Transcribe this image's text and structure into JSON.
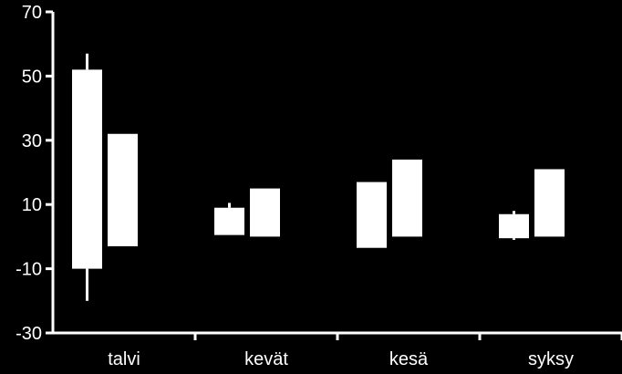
{
  "chart_data": {
    "type": "box",
    "title": "",
    "xlabel": "",
    "ylabel": "",
    "ylim": [
      -30,
      70
    ],
    "yticks": [
      -30,
      -10,
      10,
      30,
      50,
      70
    ],
    "ytick_labels": [
      "-30",
      "-10",
      "10",
      "30",
      "50",
      "70"
    ],
    "grid": false,
    "categories": [
      "talvi",
      "kevät",
      "kesä",
      "syksy"
    ],
    "series": [
      {
        "boxes": [
          {
            "low": -10,
            "high": 52,
            "whisker_low": -20,
            "whisker_high": 57
          },
          {
            "low": 0.5,
            "high": 9,
            "whisker_low": 0.5,
            "whisker_high": 10.5
          },
          {
            "low": -3.5,
            "high": 17,
            "whisker_low": -3.5,
            "whisker_high": 17
          },
          {
            "low": -0.5,
            "high": 7,
            "whisker_low": -1,
            "whisker_high": 8
          }
        ]
      },
      {
        "boxes": [
          {
            "low": -3,
            "high": 32,
            "whisker_low": -3,
            "whisker_high": 32
          },
          {
            "low": 0,
            "high": 15,
            "whisker_low": 0,
            "whisker_high": 15
          },
          {
            "low": 0,
            "high": 24,
            "whisker_low": 0,
            "whisker_high": 24
          },
          {
            "low": 0,
            "high": 21,
            "whisker_low": 0,
            "whisker_high": 21
          }
        ]
      }
    ],
    "colors": {
      "background": "#000000",
      "foreground": "#ffffff"
    }
  }
}
